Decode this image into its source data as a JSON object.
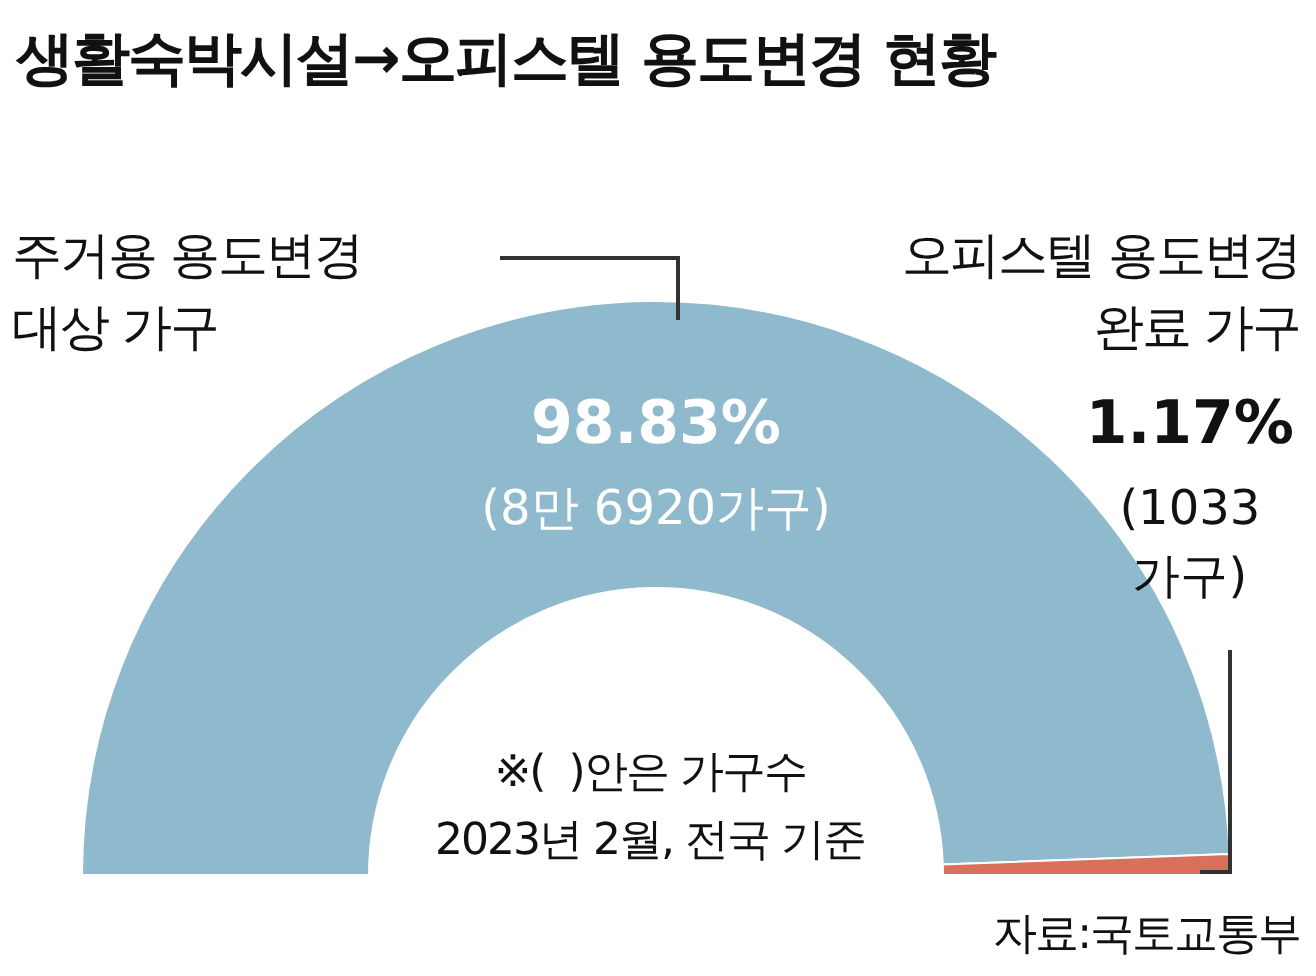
{
  "chart_data": {
    "type": "donut",
    "title": "생활숙박시설→오피스텔 용도변경 현황",
    "categories": [
      "주거용 용도변경\n대상 가구",
      "오피스텔 용도변경\n완료 가구"
    ],
    "values": [
      98.83,
      1.17
    ],
    "colors": [
      "#8fb9cc",
      "#d9705c"
    ],
    "value_labels": [
      "98.83%\n(8만 6920가구)",
      "1.17%\n(1033\n가구)"
    ],
    "annotations": [
      "※(  )안은 가구수\n2023년 2월, 전국 기준",
      "자료:국토교통부"
    ]
  }
}
